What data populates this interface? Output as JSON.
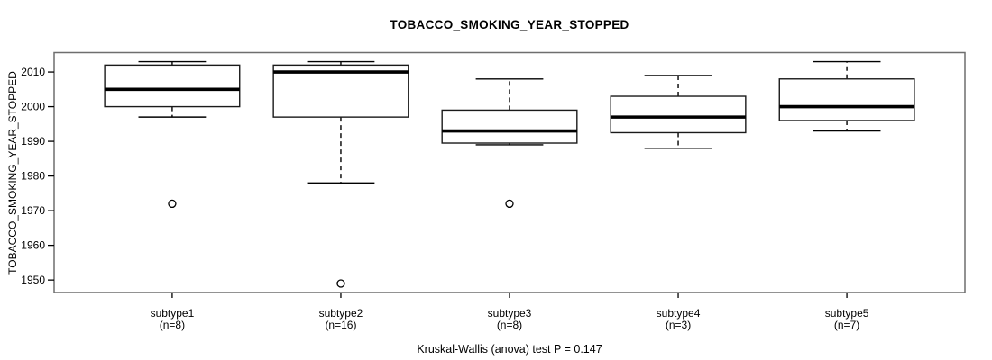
{
  "title": "TOBACCO_SMOKING_YEAR_STOPPED",
  "footer": "Kruskal-Wallis (anova) test P = 0.147",
  "colors": {
    "line": "#000000",
    "frame": "#6e6e6e",
    "box_border": "#1a1a1a",
    "box_fill": "#ffffff",
    "background": "#ffffff"
  },
  "chart_data": {
    "type": "boxplot",
    "title": "TOBACCO_SMOKING_YEAR_STOPPED",
    "ylabel": "TOBACCO_SMOKING_YEAR_STOPPED",
    "xlabel": "",
    "footer": "Kruskal-Wallis (anova) test P = 0.147",
    "grid": false,
    "ylim": [
      1946.4,
      2015.6
    ],
    "yticks": [
      1950,
      1960,
      1970,
      1980,
      1990,
      2000,
      2010
    ],
    "categories": [
      "subtype1",
      "subtype2",
      "subtype3",
      "subtype4",
      "subtype5"
    ],
    "groups": [
      {
        "label": "subtype1",
        "n": 8,
        "n_label": "(n=8)",
        "whisker_low": 1997,
        "q1": 2000,
        "median": 2005,
        "q3": 2012,
        "whisker_high": 2013,
        "outliers": [
          1972
        ]
      },
      {
        "label": "subtype2",
        "n": 16,
        "n_label": "(n=16)",
        "whisker_low": 1978,
        "q1": 1997,
        "median": 2010,
        "q3": 2012,
        "whisker_high": 2013,
        "outliers": [
          1949
        ]
      },
      {
        "label": "subtype3",
        "n": 8,
        "n_label": "(n=8)",
        "whisker_low": 1989,
        "q1": 1989.5,
        "median": 1993,
        "q3": 1999,
        "whisker_high": 2008,
        "outliers": [
          1972
        ]
      },
      {
        "label": "subtype4",
        "n": 3,
        "n_label": "(n=3)",
        "whisker_low": 1988,
        "q1": 1992.5,
        "median": 1997,
        "q3": 2003,
        "whisker_high": 2009,
        "outliers": []
      },
      {
        "label": "subtype5",
        "n": 7,
        "n_label": "(n=7)",
        "whisker_low": 1993,
        "q1": 1996,
        "median": 2000,
        "q3": 2008,
        "whisker_high": 2013,
        "outliers": []
      }
    ]
  }
}
